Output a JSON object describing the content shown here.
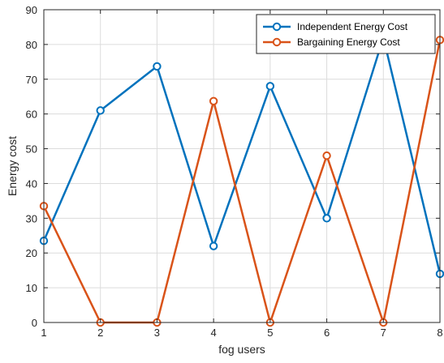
{
  "chart_data": {
    "type": "line",
    "x": [
      1,
      2,
      3,
      4,
      5,
      6,
      7,
      8
    ],
    "series": [
      {
        "name": "Independent Energy Cost",
        "values": [
          23.5,
          61,
          73.7,
          22,
          68,
          30,
          82,
          14
        ],
        "color": "#0072BD",
        "marker": "circle"
      },
      {
        "name": "Bargaining Energy Cost",
        "values": [
          33.5,
          0,
          0,
          63.7,
          0,
          48,
          0,
          81.3
        ],
        "color": "#D95319",
        "marker": "circle"
      }
    ],
    "xlabel": "fog users",
    "ylabel": "Energy cost",
    "xlim": [
      1,
      8
    ],
    "ylim": [
      0,
      90
    ],
    "xticks": [
      "1",
      "2",
      "3",
      "4",
      "5",
      "6",
      "7",
      "8"
    ],
    "yticks": [
      "0",
      "10",
      "20",
      "30",
      "40",
      "50",
      "60",
      "70",
      "80",
      "90"
    ],
    "grid": true,
    "legend_position": "top-right"
  }
}
